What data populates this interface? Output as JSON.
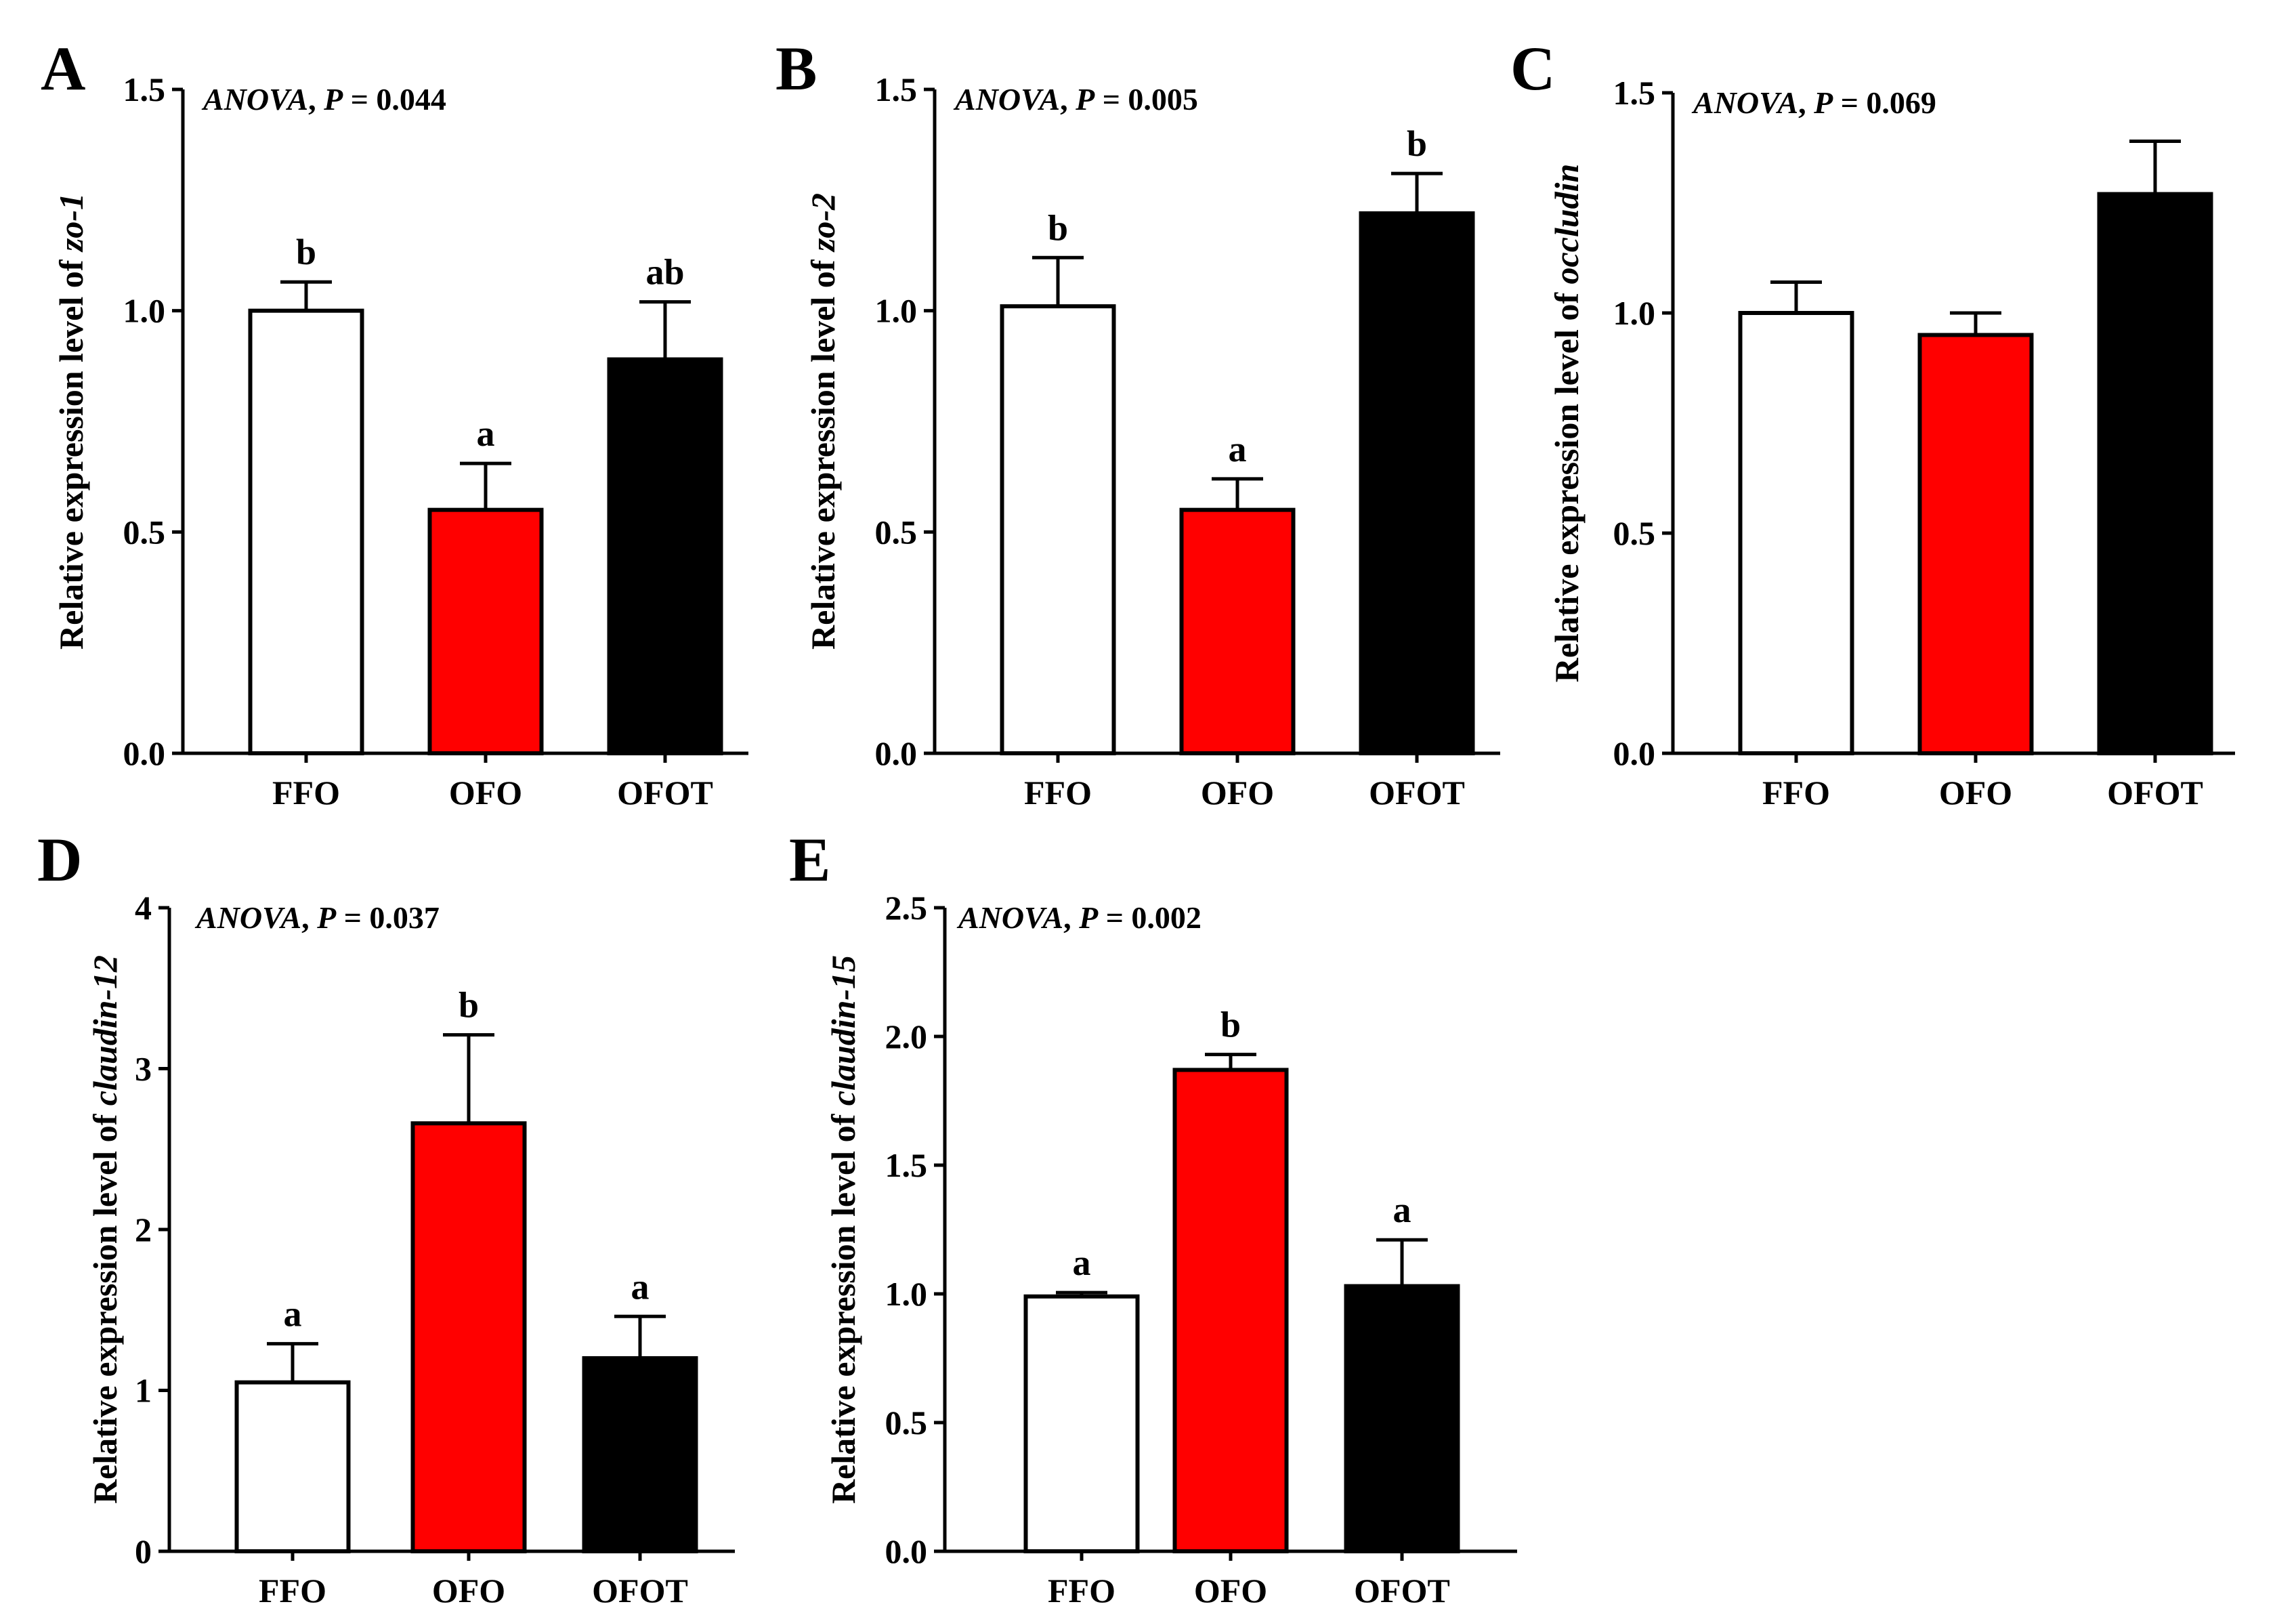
{
  "chart_data": [
    {
      "panel": "A",
      "type": "bar",
      "categories": [
        "FFO",
        "OFO",
        "OFOT"
      ],
      "values": [
        1.0,
        0.55,
        0.89
      ],
      "errors": [
        0.065,
        0.105,
        0.13
      ],
      "significance": [
        "b",
        "a",
        "ab"
      ],
      "colors": [
        "#ffffff",
        "#ff0000",
        "#000000"
      ],
      "annotation": {
        "test": "ANOVA",
        "sep": ", ",
        "p_label": "P",
        "p_text": " = 0.044"
      },
      "ylabel": {
        "prefix": "Relative expression level of ",
        "gene": "zo-1"
      },
      "ylim": [
        0,
        1.5
      ],
      "yticks": [
        "0.0",
        "0.5",
        "1.0",
        "1.5"
      ]
    },
    {
      "panel": "B",
      "type": "bar",
      "categories": [
        "FFO",
        "OFO",
        "OFOT"
      ],
      "values": [
        1.01,
        0.55,
        1.22
      ],
      "errors": [
        0.11,
        0.07,
        0.09
      ],
      "significance": [
        "b",
        "a",
        "b"
      ],
      "colors": [
        "#ffffff",
        "#ff0000",
        "#000000"
      ],
      "annotation": {
        "test": "ANOVA",
        "sep": ", ",
        "p_label": "P",
        "p_text": " = 0.005"
      },
      "ylabel": {
        "prefix": "Relative expression level of ",
        "gene": "zo-2"
      },
      "ylim": [
        0,
        1.5
      ],
      "yticks": [
        "0.0",
        "0.5",
        "1.0",
        "1.5"
      ]
    },
    {
      "panel": "C",
      "type": "bar",
      "categories": [
        "FFO",
        "OFO",
        "OFOT"
      ],
      "values": [
        1.0,
        0.95,
        1.27
      ],
      "errors": [
        0.07,
        0.05,
        0.12
      ],
      "significance": [
        "",
        "",
        ""
      ],
      "colors": [
        "#ffffff",
        "#ff0000",
        "#000000"
      ],
      "annotation": {
        "test": "ANOVA",
        "sep": ", ",
        "p_label": "P",
        "p_text": " = 0.069"
      },
      "ylabel": {
        "prefix": "Relative expression level of ",
        "gene": "occludin"
      },
      "ylim": [
        0,
        1.5
      ],
      "yticks": [
        "0.0",
        "0.5",
        "1.0",
        "1.5"
      ]
    },
    {
      "panel": "D",
      "type": "bar",
      "categories": [
        "FFO",
        "OFO",
        "OFOT"
      ],
      "values": [
        1.05,
        2.66,
        1.2
      ],
      "errors": [
        0.24,
        0.55,
        0.26
      ],
      "significance": [
        "a",
        "b",
        "a"
      ],
      "colors": [
        "#ffffff",
        "#ff0000",
        "#000000"
      ],
      "annotation": {
        "test": "ANOVA",
        "sep": ", ",
        "p_label": "P",
        "p_text": " = 0.037"
      },
      "ylabel": {
        "prefix": "Relative expression level of ",
        "gene": "claudin-12"
      },
      "ylim": [
        0,
        4
      ],
      "yticks": [
        "0",
        "1",
        "2",
        "3",
        "4"
      ]
    },
    {
      "panel": "E",
      "type": "bar",
      "categories": [
        "FFO",
        "OFO",
        "OFOT"
      ],
      "values": [
        0.99,
        1.87,
        1.03
      ],
      "errors": [
        0.015,
        0.06,
        0.18
      ],
      "significance": [
        "a",
        "b",
        "a"
      ],
      "colors": [
        "#ffffff",
        "#ff0000",
        "#000000"
      ],
      "annotation": {
        "test": "ANOVA",
        "sep": ", ",
        "p_label": "P",
        "p_text": " = 0.002"
      },
      "ylabel": {
        "prefix": "Relative expression level of ",
        "gene": "claudin-15"
      },
      "ylim": [
        0,
        2.5
      ],
      "yticks": [
        "0.0",
        "0.5",
        "1.0",
        "1.5",
        "2.0",
        "2.5"
      ]
    }
  ]
}
